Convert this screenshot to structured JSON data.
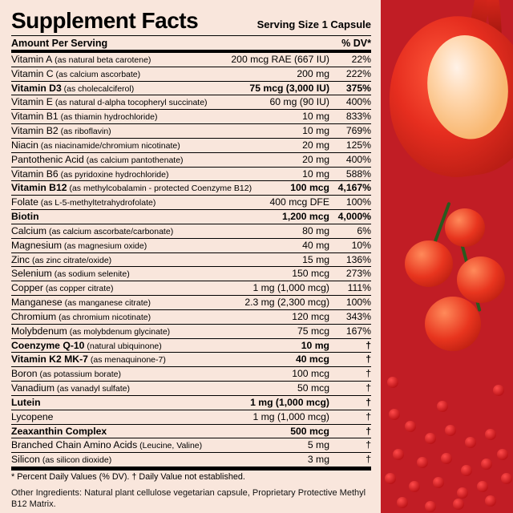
{
  "title": "Supplement Facts",
  "serving_label": "Serving Size",
  "serving_value": "1 Capsule",
  "heading_left": "Amount Per Serving",
  "heading_right": "% DV*",
  "rows": [
    {
      "nutrient": "Vitamin A",
      "src": "(as natural beta carotene)",
      "amt": "200 mcg RAE (667 IU)",
      "dv": "22%",
      "bold": false
    },
    {
      "nutrient": "Vitamin C",
      "src": "(as calcium ascorbate)",
      "amt": "200 mg",
      "dv": "222%",
      "bold": false
    },
    {
      "nutrient": "Vitamin D3",
      "src": "(as cholecalciferol)",
      "amt": "75 mcg (3,000 IU)",
      "dv": "375%",
      "bold": true
    },
    {
      "nutrient": "Vitamin E",
      "src": "(as natural d-alpha tocopheryl succinate)",
      "amt": "60 mg (90 IU)",
      "dv": "400%",
      "bold": false
    },
    {
      "nutrient": "Vitamin B1",
      "src": "(as thiamin hydrochloride)",
      "amt": "10 mg",
      "dv": "833%",
      "bold": false
    },
    {
      "nutrient": "Vitamin B2",
      "src": "(as riboflavin)",
      "amt": "10 mg",
      "dv": "769%",
      "bold": false
    },
    {
      "nutrient": "Niacin",
      "src": "(as niacinamide/chromium nicotinate)",
      "amt": "20 mg",
      "dv": "125%",
      "bold": false
    },
    {
      "nutrient": "Pantothenic Acid",
      "src": "(as calcium pantothenate)",
      "amt": "20 mg",
      "dv": "400%",
      "bold": false
    },
    {
      "nutrient": "Vitamin B6",
      "src": "(as pyridoxine hydrochloride)",
      "amt": "10 mg",
      "dv": "588%",
      "bold": false
    },
    {
      "nutrient": "Vitamin B12",
      "src": "(as methylcobalamin - protected Coenzyme B12)",
      "amt": "100 mcg",
      "dv": "4,167%",
      "bold": true
    },
    {
      "nutrient": "Folate",
      "src": "(as L-5-methyltetrahydrofolate)",
      "amt": "400 mcg DFE",
      "dv": "100%",
      "bold": false
    },
    {
      "nutrient": "Biotin",
      "src": "",
      "amt": "1,200 mcg",
      "dv": "4,000%",
      "bold": true
    },
    {
      "nutrient": "Calcium",
      "src": "(as calcium ascorbate/carbonate)",
      "amt": "80 mg",
      "dv": "6%",
      "bold": false
    },
    {
      "nutrient": "Magnesium",
      "src": "(as magnesium oxide)",
      "amt": "40 mg",
      "dv": "10%",
      "bold": false
    },
    {
      "nutrient": "Zinc",
      "src": "(as zinc citrate/oxide)",
      "amt": "15 mg",
      "dv": "136%",
      "bold": false
    },
    {
      "nutrient": "Selenium",
      "src": "(as sodium selenite)",
      "amt": "150 mcg",
      "dv": "273%",
      "bold": false
    },
    {
      "nutrient": "Copper",
      "src": "(as copper citrate)",
      "amt": "1 mg (1,000 mcg)",
      "dv": "111%",
      "bold": false
    },
    {
      "nutrient": "Manganese",
      "src": "(as manganese citrate)",
      "amt": "2.3 mg (2,300 mcg)",
      "dv": "100%",
      "bold": false
    },
    {
      "nutrient": "Chromium",
      "src": "(as chromium nicotinate)",
      "amt": "120 mcg",
      "dv": "343%",
      "bold": false
    },
    {
      "nutrient": "Molybdenum",
      "src": "(as molybdenum glycinate)",
      "amt": "75 mcg",
      "dv": "167%",
      "bold": false
    },
    {
      "nutrient": "Coenzyme Q-10",
      "src": "(natural ubiquinone)",
      "amt": "10 mg",
      "dv": "†",
      "bold": true
    },
    {
      "nutrient": "Vitamin K2 MK-7",
      "src": "(as menaquinone-7)",
      "amt": "40 mcg",
      "dv": "†",
      "bold": true
    },
    {
      "nutrient": "Boron",
      "src": "(as potassium borate)",
      "amt": "100 mcg",
      "dv": "†",
      "bold": false
    },
    {
      "nutrient": "Vanadium",
      "src": "(as vanadyl sulfate)",
      "amt": "50 mcg",
      "dv": "†",
      "bold": false
    },
    {
      "nutrient": "Lutein",
      "src": "",
      "amt": "1 mg (1,000 mcg)",
      "dv": "†",
      "bold": true
    },
    {
      "nutrient": "Lycopene",
      "src": "",
      "amt": "1 mg (1,000 mcg)",
      "dv": "†",
      "bold": false
    },
    {
      "nutrient": "Zeaxanthin Complex",
      "src": "",
      "amt": "500 mcg",
      "dv": "†",
      "bold": true
    },
    {
      "nutrient": "Branched Chain Amino Acids",
      "src": "(Leucine, Valine)",
      "amt": "5 mg",
      "dv": "†",
      "bold": false
    },
    {
      "nutrient": "Silicon",
      "src": "(as silicon dioxide)",
      "amt": "3 mg",
      "dv": "†",
      "bold": false
    }
  ],
  "footnote": "* Percent Daily Values (% DV). † Daily Value not established.",
  "other_label": "Other Ingredients:",
  "other_text": " Natural plant cellulose vegetarian capsule, Proprietary Protective Methyl B12 Matrix.",
  "colors": {
    "panel_bg": "#f9e6dc",
    "strip_bg": "#c11d25",
    "rule": "#000000"
  }
}
